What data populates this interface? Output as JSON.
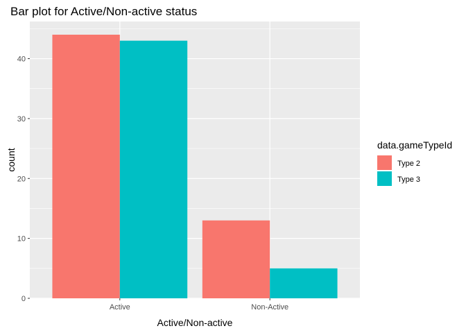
{
  "chart_data": {
    "type": "bar",
    "title": "Bar plot for Active/Non-active status",
    "xlabel": "Active/Non-active",
    "ylabel": "count",
    "categories": [
      "Active",
      "Non-Active"
    ],
    "series": [
      {
        "name": "Type 2",
        "values": [
          44,
          13
        ],
        "color": "#F8766D"
      },
      {
        "name": "Type 3",
        "values": [
          43,
          5
        ],
        "color": "#00BFC4"
      }
    ],
    "ylim": [
      0,
      46.2
    ],
    "yticks": [
      0,
      10,
      20,
      30,
      40
    ],
    "grid": true,
    "legend": {
      "title": "data.gameTypeId",
      "position": "right"
    },
    "panel_background": "#EBEBEB"
  }
}
